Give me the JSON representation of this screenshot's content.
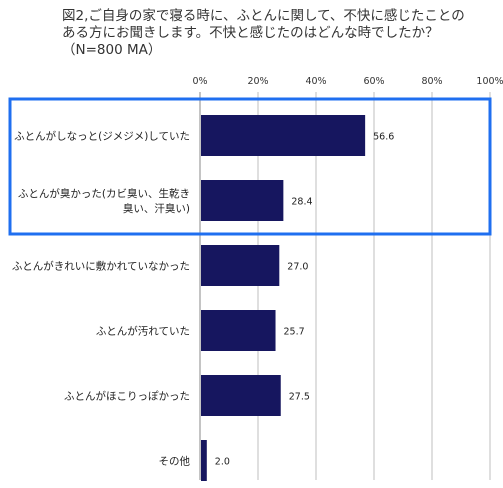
{
  "title": {
    "lines": [
      "図2,ご自身の家で寝る時に、ふとんに関して、不快に感じたことの",
      "ある方にお聞きします。不快と感じたのはどんな時でしたか？",
      "（N=800 MA）"
    ]
  },
  "chart_data": {
    "type": "bar",
    "orientation": "horizontal",
    "categories": [
      [
        "ふとんがしなっと(ジメジメ)していた"
      ],
      [
        "ふとんが臭かった(カビ臭い、生乾き",
        "臭い、汗臭い)"
      ],
      [
        "ふとんがきれいに敷かれていなかった"
      ],
      [
        "ふとんが汚れていた"
      ],
      [
        "ふとんがほこりっぽかった"
      ],
      [
        "その他"
      ]
    ],
    "values": [
      56.6,
      28.4,
      27.0,
      25.7,
      27.5,
      2.0
    ],
    "value_labels": [
      "56.6",
      "28.4",
      "27.0",
      "25.7",
      "27.5",
      "2.0"
    ],
    "xlim": [
      0,
      100
    ],
    "xticks": [
      0,
      20,
      40,
      60,
      80,
      100
    ],
    "xtick_labels": [
      "0%",
      "20%",
      "40%",
      "60%",
      "80%",
      "100%"
    ],
    "grid": true,
    "legend": "none",
    "highlighted_categories": [
      0,
      1
    ],
    "colors": {
      "bar": "#16165f",
      "grid": "#bfbfbf",
      "highlight_box": "#1f6ff0"
    }
  }
}
